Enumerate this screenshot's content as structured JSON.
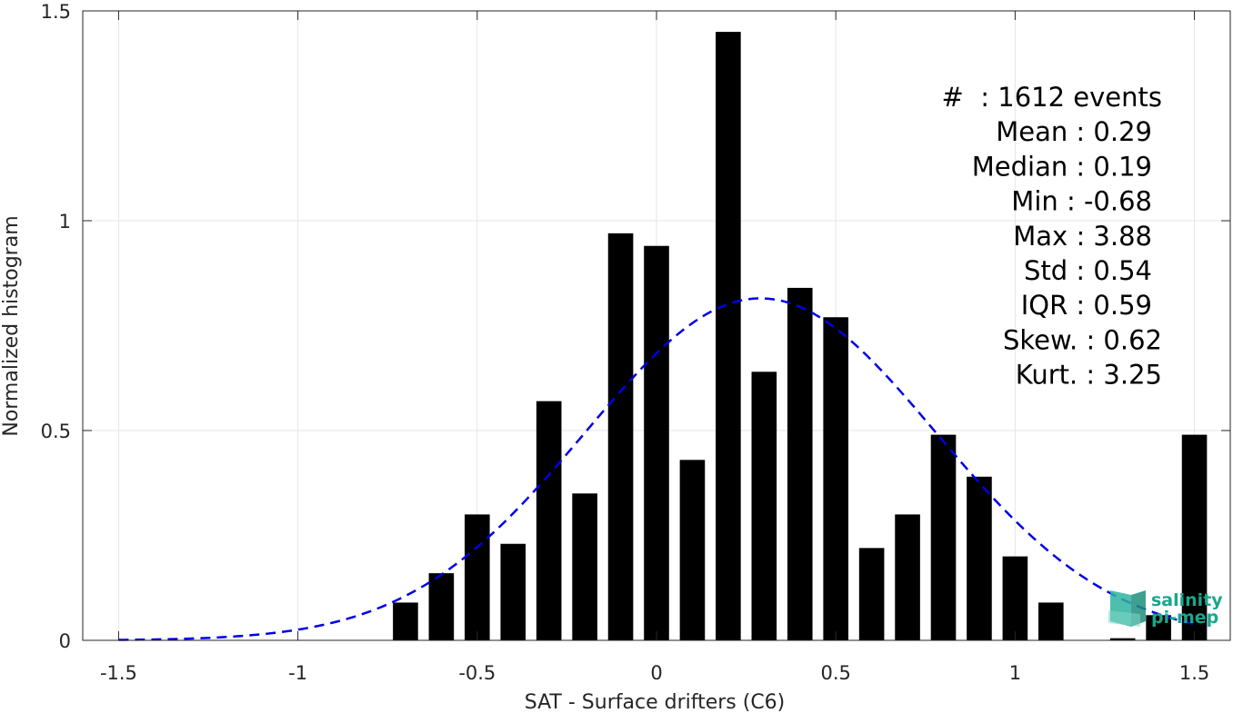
{
  "chart_data": {
    "type": "bar",
    "xlabel": "SAT - Surface drifters (C6)",
    "ylabel": "Normalized histogram",
    "xlim": [
      -1.6,
      1.6
    ],
    "ylim": [
      0,
      1.5
    ],
    "x_ticks": [
      -1.5,
      -1,
      -0.5,
      0,
      0.5,
      1,
      1.5
    ],
    "x_tick_labels": [
      "-1.5",
      "-1",
      "-0.5",
      "0",
      "0.5",
      "1",
      "1.5"
    ],
    "y_ticks": [
      0,
      0.5,
      1,
      1.5
    ],
    "y_tick_labels": [
      "0",
      "0.5",
      "1",
      "1.5"
    ],
    "grid": true,
    "bar_width": 0.07,
    "bars": {
      "x": [
        -0.7,
        -0.6,
        -0.5,
        -0.4,
        -0.3,
        -0.2,
        -0.1,
        0.0,
        0.1,
        0.2,
        0.3,
        0.4,
        0.5,
        0.6,
        0.7,
        0.8,
        0.9,
        1.0,
        1.1,
        1.2,
        1.3,
        1.4,
        1.5
      ],
      "values": [
        0.09,
        0.16,
        0.3,
        0.23,
        0.57,
        0.35,
        0.97,
        0.94,
        0.43,
        1.45,
        0.64,
        0.84,
        0.77,
        0.22,
        0.3,
        0.49,
        0.39,
        0.2,
        0.09,
        0.0,
        0.005,
        0.06,
        0.49
      ],
      "color": "#000000"
    },
    "fit_curve": {
      "style": "dashed",
      "color": "#0000e6",
      "mean": 0.29,
      "std": 0.49,
      "amplitude": 0.815,
      "x_range": [
        -1.5,
        1.5
      ]
    },
    "stats_annotation": [
      "#  : 1612 events",
      "Mean : 0.29",
      "Median : 0.19",
      "Min : -0.68",
      "Max : 3.88",
      "Std : 0.54",
      "IQR : 0.59",
      "Skew. : 0.62",
      "Kurt. : 3.25"
    ]
  },
  "logo": {
    "line1": "salinity",
    "line2": "pi-mep",
    "color": "#1aa68c"
  }
}
